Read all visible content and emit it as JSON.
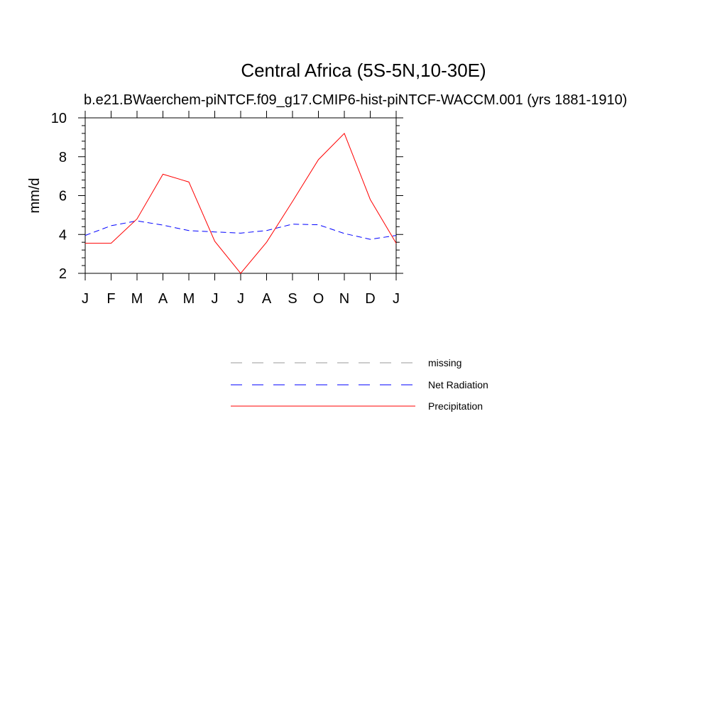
{
  "chart_data": {
    "type": "line",
    "title": "Central Africa (5S-5N,10-30E)",
    "subtitle": "b.e21.BWaerchem-piNTCF.f09_g17.CMIP6-hist-piNTCF-WACCM.001 (yrs 1881-1910)",
    "ylabel": "mm/d",
    "xlabel": "",
    "ylim": [
      2,
      10
    ],
    "yticks": [
      "2",
      "4",
      "6",
      "8",
      "10"
    ],
    "categories": [
      "J",
      "F",
      "M",
      "A",
      "M",
      "J",
      "J",
      "A",
      "S",
      "O",
      "N",
      "D",
      "J"
    ],
    "series": [
      {
        "name": "Net Radiation",
        "color": "#0000ff",
        "style": "dashed",
        "values": [
          3.95,
          4.45,
          4.7,
          4.48,
          4.2,
          4.13,
          4.07,
          4.2,
          4.53,
          4.5,
          4.05,
          3.75,
          3.95
        ]
      },
      {
        "name": "Precipitation",
        "color": "#ff0000",
        "style": "solid",
        "values": [
          3.55,
          3.55,
          4.8,
          7.1,
          6.7,
          3.65,
          2.0,
          3.6,
          5.7,
          7.85,
          9.2,
          5.8,
          3.55
        ]
      }
    ],
    "legend": {
      "placement": "below",
      "entries": [
        {
          "label": "missing",
          "color": "#999999",
          "style": "dashed"
        },
        {
          "label": "Net Radiation",
          "color": "#0000ff",
          "style": "dashed"
        },
        {
          "label": "Precipitation",
          "color": "#ff0000",
          "style": "solid"
        }
      ]
    },
    "grid": false
  }
}
